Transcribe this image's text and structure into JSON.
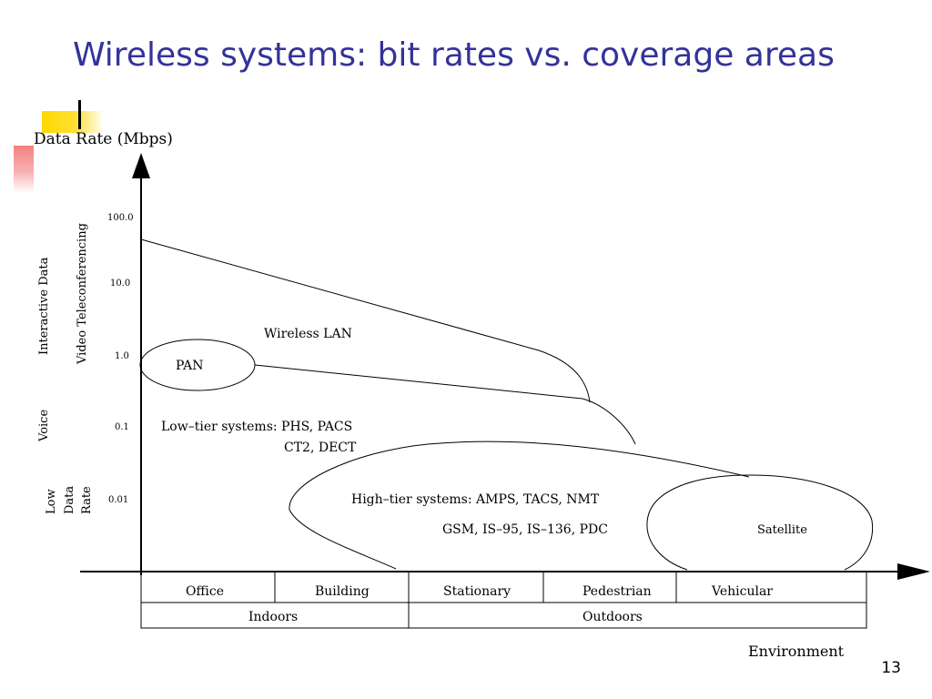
{
  "slide": {
    "title": "Wireless systems: bit rates vs. coverage areas",
    "page_number": "13"
  },
  "diagram": {
    "y_axis_title": "Data Rate (Mbps)",
    "x_axis_title": "Environment",
    "y_ticks": [
      "100.0",
      "10.0",
      "1.0",
      "0.1",
      "0.01"
    ],
    "y_categories": {
      "video": "Video Teleconferencing",
      "interactive": "Interactive Data",
      "voice": "Voice",
      "low_data_rate": [
        "Low",
        "Data",
        "Rate"
      ]
    },
    "regions": {
      "wireless_lan": "Wireless LAN",
      "pan": "PAN",
      "low_tier_line1": "Low–tier systems: PHS, PACS",
      "low_tier_line2": "CT2, DECT",
      "high_tier_line1": "High–tier systems: AMPS, TACS, NMT",
      "high_tier_line2": "GSM, IS–95, IS–136, PDC",
      "satellite": "Satellite"
    },
    "environment_columns": [
      "Office",
      "Building",
      "Stationary",
      "Pedestrian",
      "Vehicular"
    ],
    "environment_groups": [
      "Indoors",
      "Outdoors"
    ]
  }
}
